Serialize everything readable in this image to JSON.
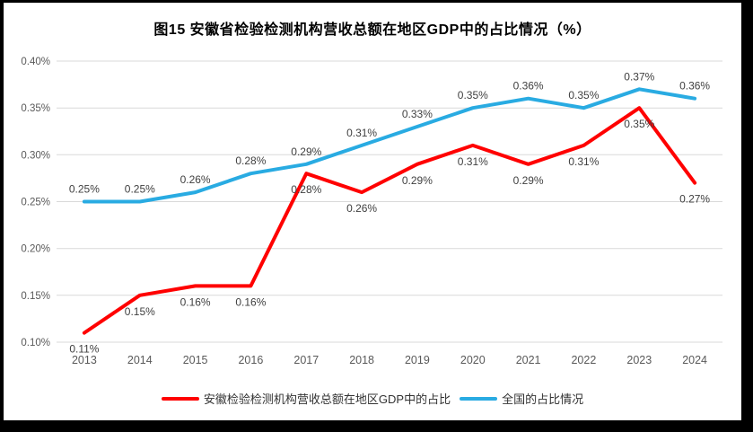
{
  "frame": {
    "border_color": "#000000",
    "background": "#ffffff"
  },
  "chart_data": {
    "type": "line",
    "title": "图15 安徽省检验检测机构营收总额在地区GDP中的占比情况（%）",
    "categories": [
      "2013",
      "2014",
      "2015",
      "2016",
      "2017",
      "2018",
      "2019",
      "2020",
      "2021",
      "2022",
      "2023",
      "2024"
    ],
    "series": [
      {
        "key": "anhui",
        "name": "安徽检验检测机构营收总额在地区GDP中的占比",
        "color": "#FF0000",
        "values": [
          0.11,
          0.15,
          0.16,
          0.16,
          0.28,
          0.26,
          0.29,
          0.31,
          0.29,
          0.31,
          0.35,
          0.27
        ],
        "labels": [
          "0.11%",
          "0.15%",
          "0.16%",
          "0.16%",
          "0.28%",
          "0.26%",
          "0.29%",
          "0.31%",
          "0.29%",
          "0.31%",
          "0.35%",
          "0.27%"
        ],
        "label_position": "below"
      },
      {
        "key": "national",
        "name": "全国的占比情况",
        "color": "#29ABE2",
        "values": [
          0.25,
          0.25,
          0.26,
          0.28,
          0.29,
          0.31,
          0.33,
          0.35,
          0.36,
          0.35,
          0.37,
          0.36
        ],
        "labels": [
          "0.25%",
          "0.25%",
          "0.26%",
          "0.28%",
          "0.29%",
          "0.31%",
          "0.33%",
          "0.35%",
          "0.36%",
          "0.35%",
          "0.37%",
          "0.36%"
        ],
        "label_position": "above"
      }
    ],
    "ylim": [
      0.1,
      0.4
    ],
    "yticks": [
      0.1,
      0.15,
      0.2,
      0.25,
      0.3,
      0.35,
      0.4
    ],
    "ytick_labels": [
      "0.10%",
      "0.15%",
      "0.20%",
      "0.25%",
      "0.30%",
      "0.35%",
      "0.40%"
    ],
    "xlabel": "",
    "ylabel": "",
    "grid": "horizontal",
    "gridline_color": "#D9D9D9",
    "axis_label_color": "#595959",
    "data_label_color": "#404040",
    "legend_position": "bottom",
    "value_suffix": "%"
  }
}
